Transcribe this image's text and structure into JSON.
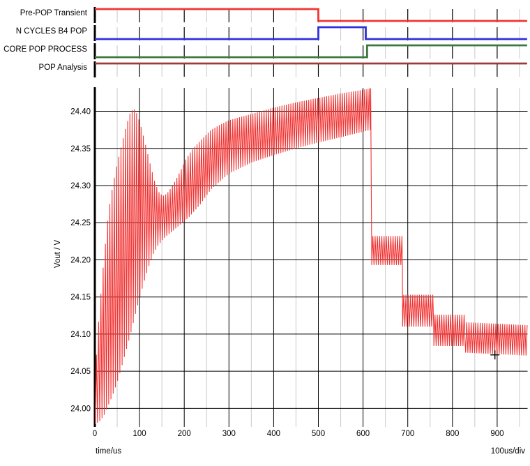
{
  "palette": {
    "trace_red": "#f23333",
    "trace_blue": "#3030dd",
    "trace_green": "#3c7a3c",
    "trace_maroon": "#9c3b3b",
    "grid_major": "#000000",
    "grid_minor": "#c9c9c9",
    "text": "#000000"
  },
  "digital_traces": {
    "lanes": [
      {
        "label": "Pre-POP Transient",
        "color": "#f23333",
        "segments": [
          {
            "t0": 0,
            "t1": 500,
            "level": 1
          },
          {
            "t0": 500,
            "t1": 967,
            "level": 0
          }
        ]
      },
      {
        "label": "N CYCLES B4 POP",
        "color": "#3030dd",
        "segments": [
          {
            "t0": 0,
            "t1": 500,
            "level": 0
          },
          {
            "t0": 500,
            "t1": 606,
            "level": 1
          },
          {
            "t0": 606,
            "t1": 967,
            "level": 0
          }
        ]
      },
      {
        "label": "CORE POP PROCESS",
        "color": "#3c7a3c",
        "segments": [
          {
            "t0": 0,
            "t1": 609,
            "level": 0
          },
          {
            "t0": 609,
            "t1": 967,
            "level": 1
          }
        ]
      },
      {
        "label": "POP Analysis",
        "color": "#9c3b3b",
        "segments": [
          {
            "t0": 0,
            "t1": 967,
            "level": 1
          }
        ]
      }
    ]
  },
  "chart_data": {
    "type": "line",
    "xlabel": "time/us",
    "ylabel": "Vout / V",
    "x_div_label": "100us/div",
    "xlim": [
      0,
      968
    ],
    "ylim": [
      23.975,
      24.4315
    ],
    "x_ticks": [
      0,
      100,
      200,
      300,
      400,
      500,
      600,
      700,
      800,
      900
    ],
    "x_minor": [
      50,
      150,
      250,
      350,
      450,
      550,
      650,
      750,
      850,
      950
    ],
    "y_ticks": [
      24.0,
      24.05,
      24.1,
      24.15,
      24.2,
      24.25,
      24.3,
      24.35,
      24.4
    ],
    "grid": true,
    "legend": "trace labels top-left, one per strip",
    "cursor": {
      "t": 895,
      "v": 24.072
    },
    "series": [
      {
        "name": "Vout",
        "color": "#f23333",
        "ripple_period_us": 5,
        "description": "switching ripple drawn between lower/upper envelopes; phase steps are POP analysis load steps",
        "phases": [
          {
            "t0": 1,
            "t1": 617,
            "end_on": "upper",
            "lower": [
              [
                1,
                23.979
              ],
              [
                10,
                23.982
              ],
              [
                20,
                23.99
              ],
              [
                30,
                24.004
              ],
              [
                40,
                24.018
              ],
              [
                50,
                24.035
              ],
              [
                60,
                24.056
              ],
              [
                70,
                24.078
              ],
              [
                80,
                24.1
              ],
              [
                90,
                24.125
              ],
              [
                100,
                24.148
              ],
              [
                110,
                24.17
              ],
              [
                120,
                24.19
              ],
              [
                130,
                24.207
              ],
              [
                140,
                24.218
              ],
              [
                150,
                24.226
              ],
              [
                160,
                24.232
              ],
              [
                175,
                24.239
              ],
              [
                190,
                24.247
              ],
              [
                210,
                24.257
              ],
              [
                235,
                24.274
              ],
              [
                260,
                24.295
              ],
              [
                300,
                24.316
              ],
              [
                350,
                24.331
              ],
              [
                400,
                24.341
              ],
              [
                450,
                24.35
              ],
              [
                500,
                24.358
              ],
              [
                550,
                24.365
              ],
              [
                590,
                24.371
              ],
              [
                617,
                24.375
              ]
            ],
            "upper": [
              [
                1,
                24.05
              ],
              [
                10,
                24.13
              ],
              [
                20,
                24.2
              ],
              [
                30,
                24.262
              ],
              [
                40,
                24.3
              ],
              [
                50,
                24.33
              ],
              [
                60,
                24.355
              ],
              [
                70,
                24.38
              ],
              [
                80,
                24.4
              ],
              [
                88,
                24.403
              ],
              [
                95,
                24.396
              ],
              [
                105,
                24.376
              ],
              [
                115,
                24.351
              ],
              [
                125,
                24.326
              ],
              [
                135,
                24.303
              ],
              [
                145,
                24.289
              ],
              [
                155,
                24.286
              ],
              [
                165,
                24.292
              ],
              [
                175,
                24.301
              ],
              [
                185,
                24.312
              ],
              [
                195,
                24.324
              ],
              [
                205,
                24.337
              ],
              [
                220,
                24.35
              ],
              [
                240,
                24.363
              ],
              [
                260,
                24.375
              ],
              [
                280,
                24.382
              ],
              [
                300,
                24.388
              ],
              [
                330,
                24.393
              ],
              [
                360,
                24.398
              ],
              [
                400,
                24.405
              ],
              [
                450,
                24.412
              ],
              [
                500,
                24.418
              ],
              [
                550,
                24.424
              ],
              [
                590,
                24.428
              ],
              [
                617,
                24.431
              ]
            ]
          },
          {
            "t0": 619.5,
            "t1": 688,
            "end_on": "lower",
            "lower": [
              [
                619.5,
                24.193
              ],
              [
                688,
                24.193
              ]
            ],
            "upper": [
              [
                619.5,
                24.232
              ],
              [
                688,
                24.232
              ]
            ]
          },
          {
            "t0": 688.5,
            "t1": 758,
            "end_on": "lower",
            "lower": [
              [
                688.5,
                24.11
              ],
              [
                758,
                24.11
              ]
            ],
            "upper": [
              [
                688.5,
                24.153
              ],
              [
                758,
                24.153
              ]
            ]
          },
          {
            "t0": 758.5,
            "t1": 829,
            "end_on": "lower",
            "lower": [
              [
                758.5,
                24.084
              ],
              [
                829,
                24.084
              ]
            ],
            "upper": [
              [
                758.5,
                24.126
              ],
              [
                829,
                24.126
              ]
            ]
          },
          {
            "t0": 829.5,
            "t1": 967,
            "lower": [
              [
                829.5,
                24.075
              ],
              [
                967,
                24.071
              ]
            ],
            "upper": [
              [
                829.5,
                24.116
              ],
              [
                967,
                24.112
              ]
            ]
          }
        ]
      }
    ]
  }
}
